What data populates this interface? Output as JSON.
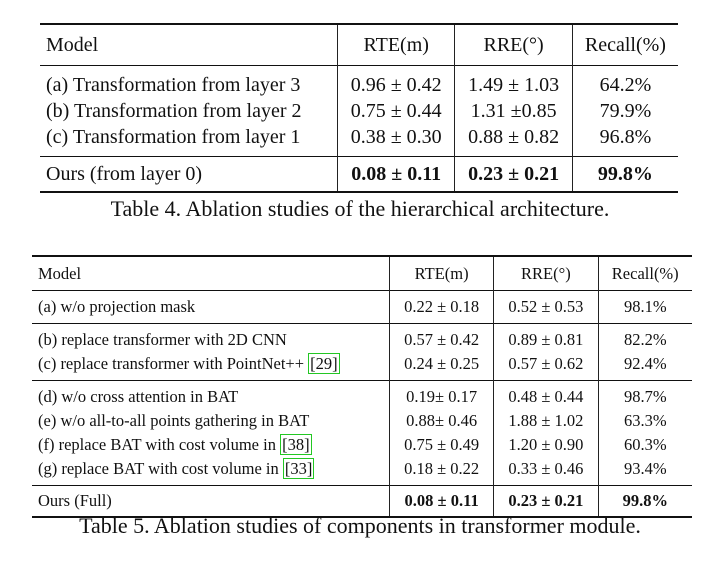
{
  "table4": {
    "headers": [
      "Model",
      "RTE(m)",
      "RRE(°)",
      "Recall(%)"
    ],
    "rows": [
      [
        "(a) Transformation from layer 3",
        "0.96 ± 0.42",
        "1.49 ± 1.03",
        "64.2%"
      ],
      [
        "(b) Transformation from layer 2",
        "0.75 ± 0.44",
        "1.31 ±0.85",
        "79.9%"
      ],
      [
        "(c) Transformation from layer 1",
        "0.38 ± 0.30",
        "0.88 ± 0.82",
        "96.8%"
      ]
    ],
    "ours": [
      "Ours (from layer 0)",
      "0.08 ± 0.11",
      "0.23 ± 0.21",
      "99.8%"
    ],
    "caption": "Table 4. Ablation studies of the hierarchical architecture."
  },
  "table5": {
    "headers": [
      "Model",
      "RTE(m)",
      "RRE(°)",
      "Recall(%)"
    ],
    "group1": [
      [
        "(a) w/o projection mask",
        "0.22 ± 0.18",
        "0.52 ± 0.53",
        "98.1%"
      ]
    ],
    "group2": [
      {
        "model": "(b) replace transformer with 2D CNN",
        "ref": "",
        "rte": "0.57 ± 0.42",
        "rre": "0.89 ± 0.81",
        "recall": "82.2%"
      },
      {
        "model": "(c) replace transformer with PointNet++ ",
        "ref": "[29]",
        "rte": "0.24 ± 0.25",
        "rre": "0.57 ± 0.62",
        "recall": "92.4%"
      }
    ],
    "group3": [
      {
        "model": "(d) w/o cross attention in BAT",
        "ref": "",
        "rte": "0.19± 0.17",
        "rre": "0.48 ± 0.44",
        "recall": "98.7%"
      },
      {
        "model": "(e) w/o all-to-all points gathering in BAT",
        "ref": "",
        "rte": "0.88± 0.46",
        "rre": "1.88 ± 1.02",
        "recall": "63.3%"
      },
      {
        "model": "(f) replace BAT with cost volume in ",
        "ref": "[38]",
        "rte": "0.75 ± 0.49",
        "rre": "1.20 ± 0.90",
        "recall": "60.3%"
      },
      {
        "model": "(g) replace BAT with cost volume in ",
        "ref": "[33]",
        "rte": "0.18 ± 0.22",
        "rre": "0.33 ± 0.46",
        "recall": "93.4%"
      }
    ],
    "ours": [
      "Ours (Full)",
      "0.08 ± 0.11",
      "0.23 ± 0.21",
      "99.8%"
    ],
    "caption": "Table 5. Ablation studies of components in transformer module."
  }
}
